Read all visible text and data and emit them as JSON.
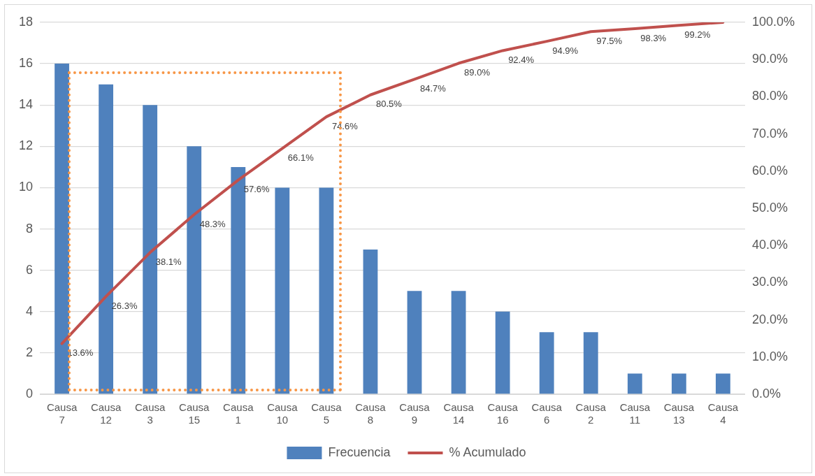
{
  "chart_data": {
    "type": "bar",
    "categories": [
      "Causa 7",
      "Causa 12",
      "Causa 3",
      "Causa 15",
      "Causa 1",
      "Causa 10",
      "Causa 5",
      "Causa 8",
      "Causa 9",
      "Causa 14",
      "Causa 16",
      "Causa 6",
      "Causa 2",
      "Causa 11",
      "Causa 13",
      "Causa 4"
    ],
    "series": [
      {
        "name": "Frecuencia",
        "color": "#4f81bd",
        "values": [
          16,
          15,
          14,
          12,
          11,
          10,
          10,
          7,
          5,
          5,
          4,
          3,
          3,
          1,
          1,
          1
        ]
      },
      {
        "name": "% Acumulado",
        "type": "line",
        "axis": "y2",
        "color": "#c0504d",
        "values": [
          13.6,
          26.3,
          38.1,
          48.3,
          57.6,
          66.1,
          74.6,
          80.5,
          84.7,
          89.0,
          92.4,
          94.9,
          97.5,
          98.3,
          99.2,
          100
        ],
        "value_labels": [
          "13.6%",
          "26.3%",
          "38.1%",
          "48.3%",
          "57.6%",
          "66.1%",
          "74.6%",
          "80.5%",
          "84.7%",
          "89.0%",
          "92.4%",
          "94.9%",
          "97.5%",
          "98.3%",
          "99.2%",
          null
        ]
      }
    ],
    "ylim": [
      0,
      18
    ],
    "yticks": [
      0,
      2,
      4,
      6,
      8,
      10,
      12,
      14,
      16,
      18
    ],
    "y2lim": [
      0,
      100
    ],
    "y2ticks": [
      {
        "value": 0,
        "label": "0.0%"
      },
      {
        "value": 10,
        "label": "10.0%"
      },
      {
        "value": 20,
        "label": "20.0%"
      },
      {
        "value": 30,
        "label": "30.0%"
      },
      {
        "value": 40,
        "label": "40.0%"
      },
      {
        "value": 50,
        "label": "50.0%"
      },
      {
        "value": 60,
        "label": "60.0%"
      },
      {
        "value": 70,
        "label": "70.0%"
      },
      {
        "value": 80,
        "label": "80.0%"
      },
      {
        "value": 90,
        "label": "90.0%"
      },
      {
        "value": 100,
        "label": "100.0%"
      }
    ],
    "grid": "y",
    "legend": "bottom",
    "marker": "none"
  }
}
